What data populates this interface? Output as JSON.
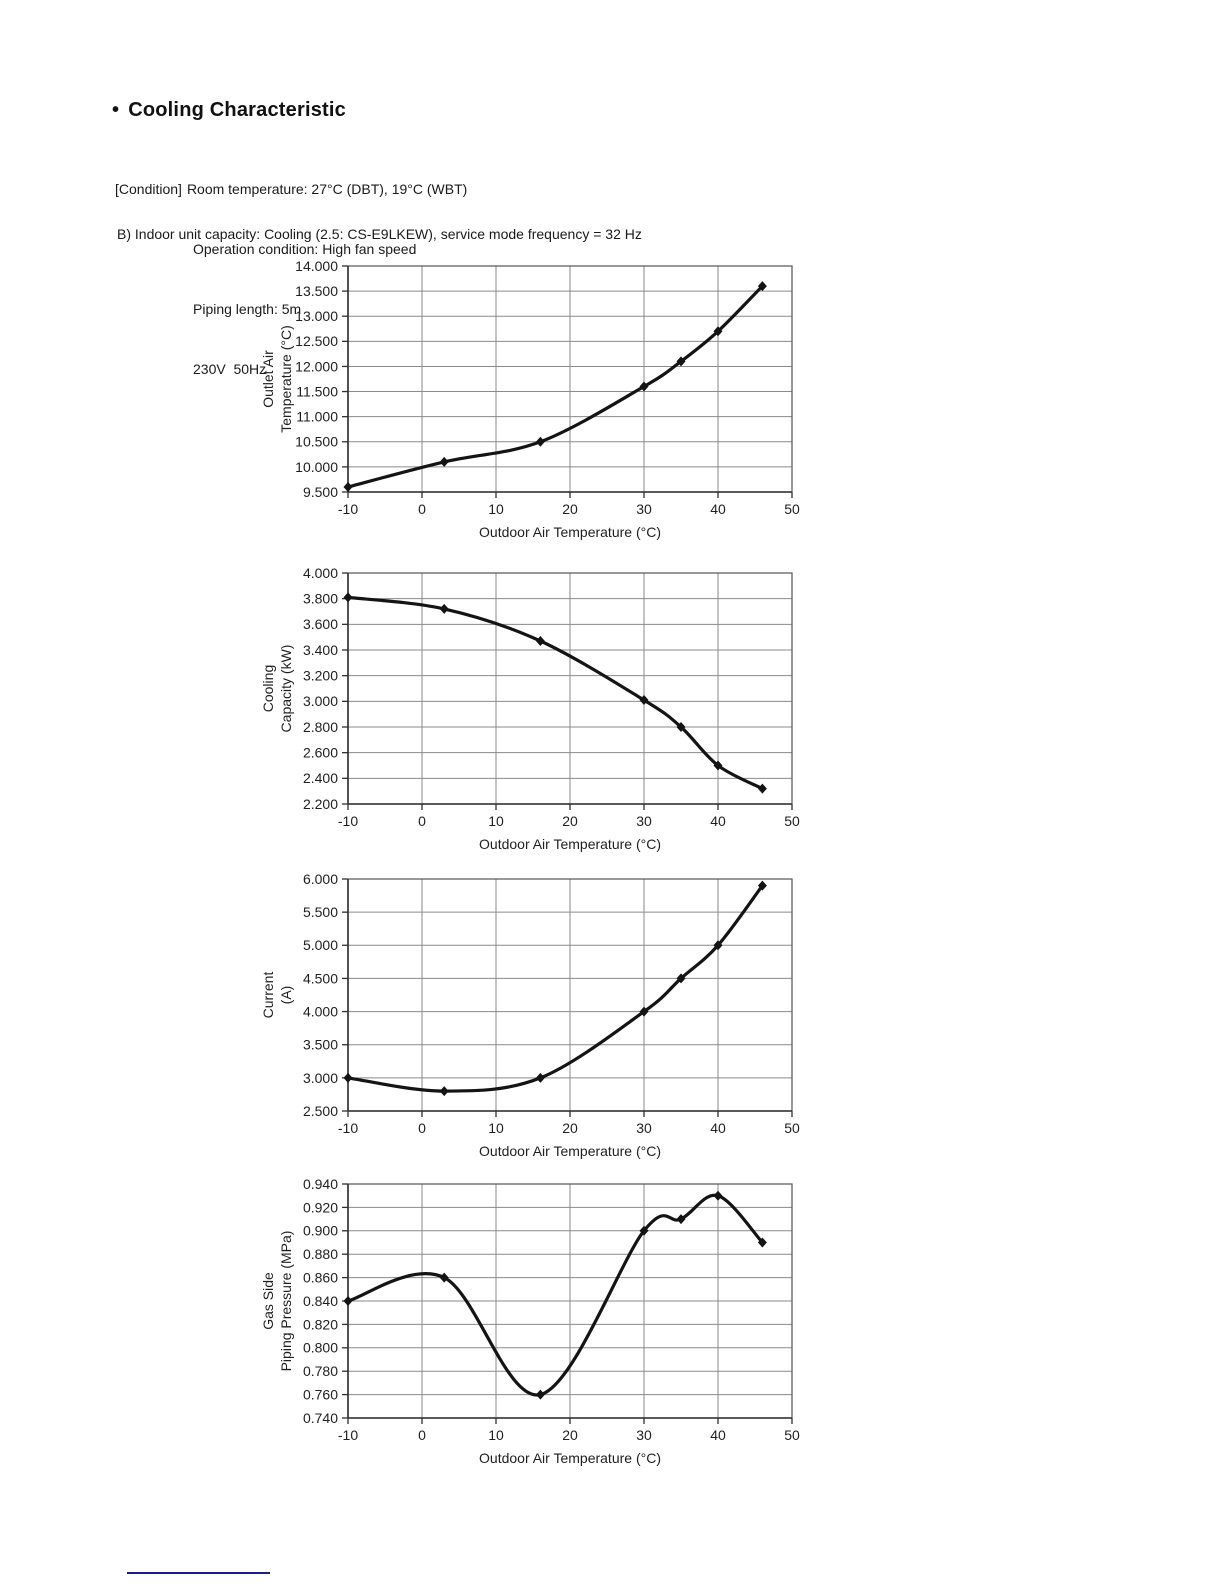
{
  "header": {
    "bullet": "•",
    "title": "Cooling Characteristic"
  },
  "conditions": {
    "label": "[Condition]",
    "lines": [
      "Room temperature: 27°C (DBT), 19°C (WBT)",
      "Operation condition: High fan speed",
      "Piping length: 5m",
      "230V  50Hz"
    ]
  },
  "section": {
    "heading": "B) Indoor unit capacity: Cooling (2.5: CS-E9LKEW), service mode frequency = 32 Hz"
  },
  "chart_data": [
    {
      "type": "line",
      "name": "outlet-air-temperature",
      "x": [
        -10,
        3,
        16,
        30,
        35,
        40,
        46
      ],
      "values": [
        9.6,
        10.1,
        10.5,
        11.6,
        12.1,
        12.7,
        13.6
      ],
      "ylabel_lines": [
        "Outlet Air",
        "Temperature (°C)"
      ],
      "xlabel": "Outdoor Air Temperature (°C)",
      "xlim": [
        -10,
        50
      ],
      "xticks": [
        -10,
        0,
        10,
        20,
        30,
        40,
        50
      ],
      "ylim": [
        9.5,
        14.0
      ],
      "ytick_step": 0.5,
      "ytick_decimals": 3,
      "grid": true,
      "legend": "none",
      "marker": "diamond",
      "line_color": "#141414"
    },
    {
      "type": "line",
      "name": "cooling-capacity",
      "x": [
        -10,
        3,
        16,
        30,
        35,
        40,
        46
      ],
      "values": [
        3.81,
        3.72,
        3.47,
        3.01,
        2.8,
        2.5,
        2.32
      ],
      "ylabel_lines": [
        "Cooling",
        "Capacity (kW)"
      ],
      "xlabel": "Outdoor Air Temperature (°C)",
      "xlim": [
        -10,
        50
      ],
      "xticks": [
        -10,
        0,
        10,
        20,
        30,
        40,
        50
      ],
      "ylim": [
        2.2,
        4.0
      ],
      "ytick_step": 0.2,
      "ytick_decimals": 3,
      "grid": true,
      "legend": "none",
      "marker": "diamond",
      "line_color": "#141414"
    },
    {
      "type": "line",
      "name": "current",
      "x": [
        -10,
        3,
        16,
        30,
        35,
        40,
        46
      ],
      "values": [
        3.0,
        2.8,
        3.0,
        4.0,
        4.5,
        5.0,
        5.9
      ],
      "ylabel_lines": [
        "Current",
        "(A)"
      ],
      "xlabel": "Outdoor Air Temperature (°C)",
      "xlim": [
        -10,
        50
      ],
      "xticks": [
        -10,
        0,
        10,
        20,
        30,
        40,
        50
      ],
      "ylim": [
        2.5,
        6.0
      ],
      "ytick_step": 0.5,
      "ytick_decimals": 3,
      "grid": true,
      "legend": "none",
      "marker": "diamond",
      "line_color": "#141414"
    },
    {
      "type": "line",
      "name": "gas-side-piping-pressure",
      "x": [
        -10,
        3,
        16,
        30,
        35,
        40,
        46
      ],
      "values": [
        0.84,
        0.86,
        0.76,
        0.9,
        0.91,
        0.93,
        0.89
      ],
      "ylabel_lines": [
        "Gas Side",
        "Piping Pressure (MPa)"
      ],
      "xlabel": "Outdoor Air Temperature (°C)",
      "xlim": [
        -10,
        50
      ],
      "xticks": [
        -10,
        0,
        10,
        20,
        30,
        40,
        50
      ],
      "ylim": [
        0.74,
        0.94
      ],
      "ytick_step": 0.02,
      "ytick_decimals": 3,
      "grid": true,
      "legend": "none",
      "marker": "diamond",
      "line_color": "#141414"
    }
  ],
  "footer": {
    "rule_color": "#1b1b8f"
  }
}
